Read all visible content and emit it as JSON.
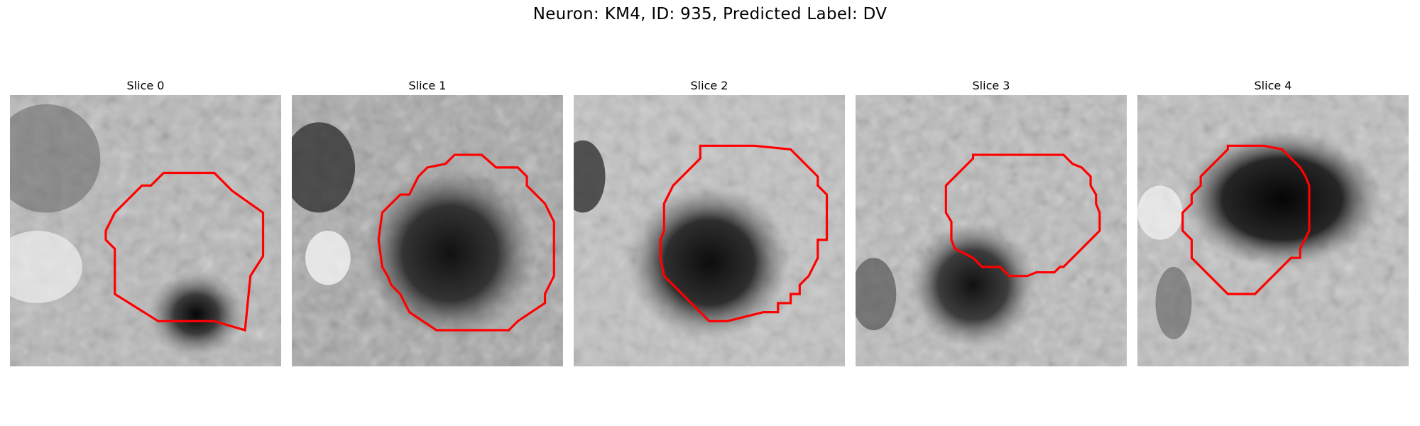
{
  "figure": {
    "title": "Neuron: KM4, ID: 935, Predicted Label: DV"
  },
  "panels": [
    {
      "label": "Slice 0"
    },
    {
      "label": "Slice 1"
    },
    {
      "label": "Slice 2"
    },
    {
      "label": "Slice 3"
    },
    {
      "label": "Slice 4"
    }
  ],
  "colors": {
    "contour": "#ff0000",
    "background": "#ffffff"
  }
}
